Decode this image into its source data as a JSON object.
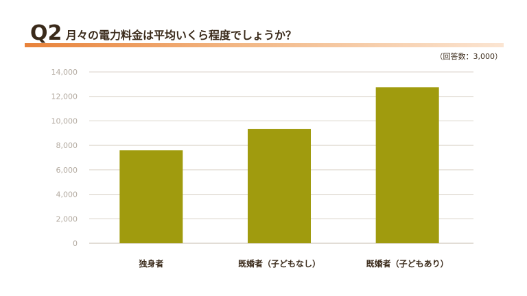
{
  "header": {
    "question_number": "Q2",
    "title": "月々の電力料金は平均いくら程度でしょうか？",
    "sample_note": "（回答数：3,000）"
  },
  "colors": {
    "bar": "#a09b0e",
    "grid": "#d9d2c8",
    "tick_text": "#b3aaa0",
    "category_text": "#3a2a1a",
    "accent": "#e8823a"
  },
  "chart_data": {
    "type": "bar",
    "title": "月々の電力料金は平均いくら程度でしょうか？",
    "xlabel": "",
    "ylabel": "",
    "categories": [
      "独身者",
      "既婚者（子どもなし）",
      "既婚者（子どもあり）"
    ],
    "values": [
      7600,
      9350,
      12750
    ],
    "ylim": [
      0,
      14000
    ],
    "yticks": [
      0,
      2000,
      4000,
      6000,
      8000,
      10000,
      12000,
      14000
    ],
    "ytick_labels": [
      "0",
      "2,000",
      "4,000",
      "6,000",
      "8,000",
      "10,000",
      "12,000",
      "14,000"
    ],
    "grid": true,
    "legend": "none"
  }
}
